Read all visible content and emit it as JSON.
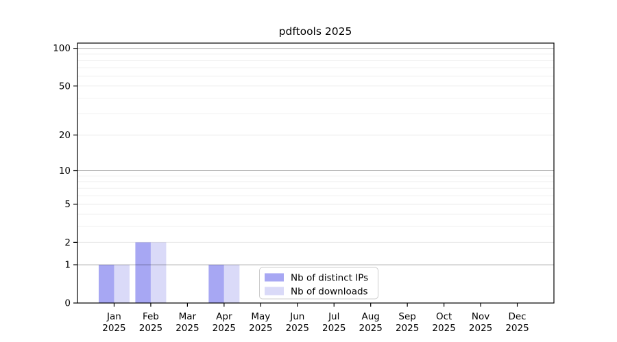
{
  "chart_data": {
    "type": "bar",
    "title": "pdftools 2025",
    "categories": [
      "Jan",
      "Feb",
      "Mar",
      "Apr",
      "May",
      "Jun",
      "Jul",
      "Aug",
      "Sep",
      "Oct",
      "Nov",
      "Dec"
    ],
    "year_label": "2025",
    "series": [
      {
        "name": "Nb of distinct IPs",
        "color": "#a7a7f3",
        "values": [
          1,
          2,
          0,
          1,
          0,
          0,
          0,
          0,
          0,
          0,
          0,
          0
        ]
      },
      {
        "name": "Nb of downloads",
        "color": "#dadaf8",
        "values": [
          1,
          2,
          0,
          1,
          0,
          0,
          0,
          0,
          0,
          0,
          0,
          0
        ]
      }
    ],
    "xlabel": "",
    "ylabel": "",
    "yscale": "log1p",
    "yticks": [
      0,
      1,
      2,
      5,
      10,
      20,
      50,
      100
    ],
    "yticks_minor": [
      3,
      4,
      6,
      7,
      8,
      9,
      30,
      40,
      60,
      70,
      80,
      90
    ],
    "ylim": [
      0,
      110
    ],
    "grid": "horizontal",
    "legend_position": "bottom-center-inside"
  }
}
